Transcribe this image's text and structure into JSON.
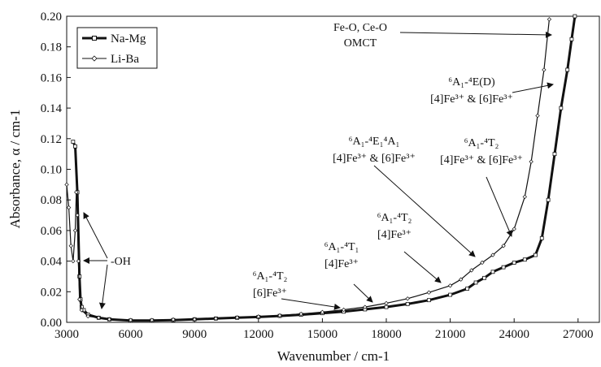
{
  "chart_data": {
    "type": "line",
    "title": "",
    "xlabel": "Wavenumber / cm-1",
    "ylabel": "Absorbance, α / cm-1",
    "xlim": [
      3000,
      28000
    ],
    "ylim": [
      0,
      0.2
    ],
    "x_ticks": [
      "3000",
      "6000",
      "9000",
      "12000",
      "15000",
      "18000",
      "21000",
      "24000",
      "27000"
    ],
    "y_ticks": [
      "0.00",
      "0.02",
      "0.04",
      "0.06",
      "0.08",
      "0.10",
      "0.12",
      "0.14",
      "0.16",
      "0.18",
      "0.20"
    ],
    "grid": false,
    "legend_position": "top-left",
    "series": [
      {
        "name": "Na-Mg",
        "color": "#111111",
        "marker": "open-square",
        "x": [
          3300,
          3400,
          3500,
          3600,
          3650,
          3700,
          3800,
          4000,
          4500,
          5000,
          6000,
          7000,
          8000,
          9000,
          10000,
          11000,
          12000,
          13000,
          14000,
          15000,
          16000,
          17000,
          18000,
          19000,
          20000,
          21000,
          21800,
          22200,
          22600,
          23000,
          23500,
          24000,
          24500,
          25000,
          25300,
          25600,
          25900,
          26200,
          26500,
          26700,
          26850
        ],
        "y": [
          0.118,
          0.115,
          0.085,
          0.03,
          0.015,
          0.01,
          0.008,
          0.005,
          0.003,
          0.002,
          0.0012,
          0.0012,
          0.0015,
          0.002,
          0.0025,
          0.003,
          0.0035,
          0.0042,
          0.005,
          0.006,
          0.007,
          0.0085,
          0.01,
          0.012,
          0.0145,
          0.018,
          0.022,
          0.026,
          0.029,
          0.033,
          0.036,
          0.039,
          0.041,
          0.044,
          0.055,
          0.08,
          0.11,
          0.14,
          0.165,
          0.185,
          0.2
        ]
      },
      {
        "name": "Li-Ba",
        "color": "#111111",
        "marker": "small-diamond",
        "x": [
          3000,
          3100,
          3200,
          3300,
          3400,
          3450,
          3500,
          3550,
          3600,
          3700,
          4000,
          4500,
          5000,
          6000,
          7000,
          8000,
          9000,
          10000,
          11000,
          12000,
          13000,
          14000,
          15000,
          16000,
          17000,
          18000,
          19000,
          20000,
          21000,
          21500,
          22000,
          22500,
          23000,
          23500,
          24000,
          24500,
          24800,
          25100,
          25400,
          25650
        ],
        "y": [
          0.09,
          0.075,
          0.05,
          0.04,
          0.06,
          0.085,
          0.07,
          0.04,
          0.015,
          0.008,
          0.004,
          0.003,
          0.002,
          0.0015,
          0.0015,
          0.0018,
          0.002,
          0.0025,
          0.0032,
          0.0038,
          0.0045,
          0.0055,
          0.0067,
          0.0082,
          0.01,
          0.0125,
          0.0155,
          0.0195,
          0.024,
          0.028,
          0.034,
          0.039,
          0.044,
          0.05,
          0.061,
          0.082,
          0.105,
          0.135,
          0.165,
          0.198
        ]
      }
    ],
    "annotations": [
      {
        "lines": [
          "Fe-O, Ce-O",
          "OMCT"
        ]
      },
      {
        "lines": [
          "⁶A₁-⁴E(D)",
          "[4]Fe³⁺ & [6]Fe³⁺"
        ]
      },
      {
        "lines": [
          "⁶A₁-⁴E₁⁴A₁",
          "[4]Fe³⁺ & [6]Fe³⁺"
        ]
      },
      {
        "lines": [
          "⁶A₁-⁴T₂",
          "[4]Fe³⁺ & [6]Fe³⁺"
        ]
      },
      {
        "lines": [
          "⁶A₁-⁴T₂",
          "[4]Fe³⁺"
        ]
      },
      {
        "lines": [
          "⁶A₁-⁴T₁",
          "[4]Fe³⁺"
        ]
      },
      {
        "lines": [
          "⁶A₁-⁴T₂",
          "[6]Fe³⁺"
        ]
      },
      {
        "lines": [
          "-OH"
        ]
      }
    ]
  }
}
